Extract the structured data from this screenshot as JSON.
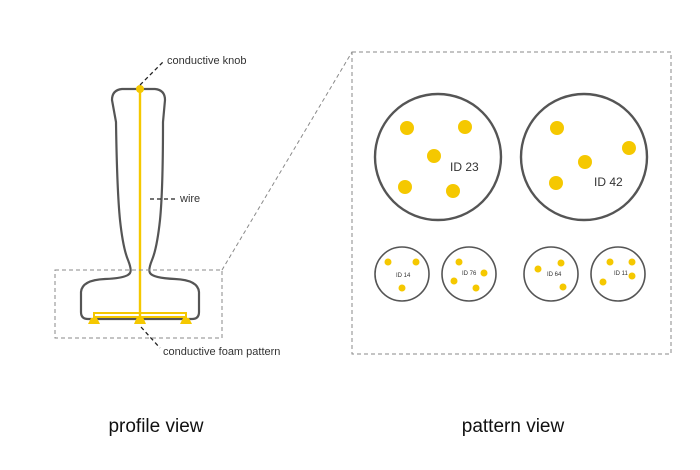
{
  "colors": {
    "accent": "#f5c800",
    "outline": "#555555",
    "dashed": "#8a8a8a",
    "text": "#333333"
  },
  "profile": {
    "labels": {
      "knob": "conductive knob",
      "wire": "wire",
      "foam": "conductive foam pattern"
    },
    "title": "profile view"
  },
  "pattern": {
    "title": "pattern view",
    "large_tokens": [
      {
        "id": "ID 23"
      },
      {
        "id": "ID 42"
      }
    ],
    "small_tokens": [
      {
        "id": "ID 14"
      },
      {
        "id": "ID 76"
      },
      {
        "id": "ID 64"
      },
      {
        "id": "ID 11"
      }
    ]
  }
}
